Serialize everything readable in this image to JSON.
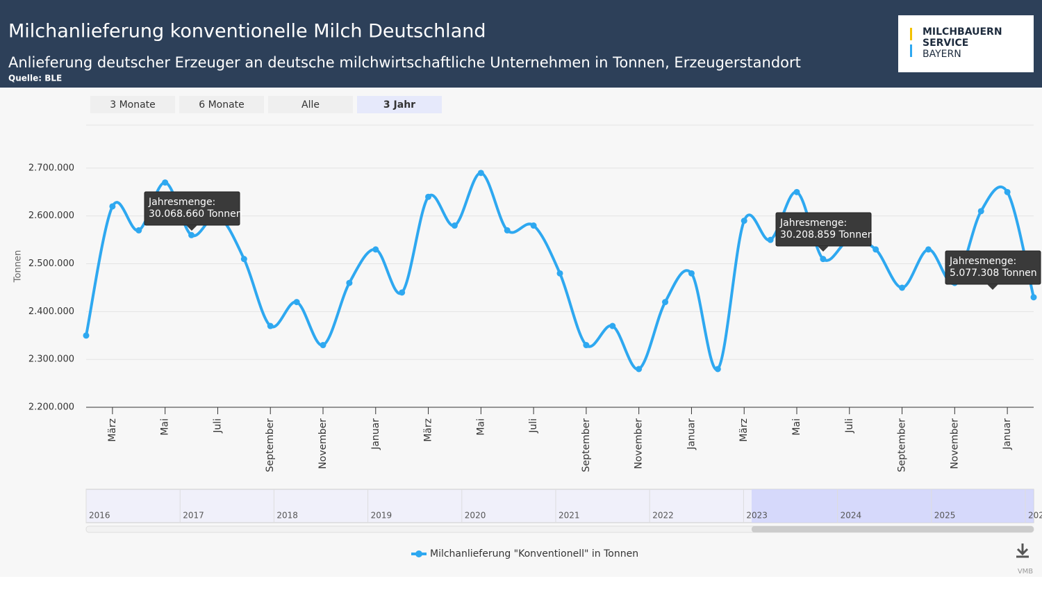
{
  "header": {
    "title": "Milchanlieferung konventionelle Milch Deutschland",
    "subtitle": "Anlieferung deutscher Erzeuger an deutsche milchwirtschaftliche Unternehmen in Tonnen, Erzeugerstandort",
    "source": "Quelle: BLE",
    "logo": [
      "MILCHBAUERN",
      "SERVICE",
      "BAYERN"
    ]
  },
  "buttons": [
    "3 Monate",
    "6 Monate",
    "Alle",
    "3 Jahr"
  ],
  "chart_data": {
    "type": "line",
    "y_label": "Tonnen",
    "categories": [
      null,
      "März",
      null,
      "Mai",
      null,
      "Juli",
      null,
      "September",
      null,
      "November",
      null,
      "Januar",
      null,
      "März",
      null,
      "Mai",
      null,
      "Juli",
      null,
      "September",
      null,
      "November",
      null,
      "Januar",
      null,
      "März",
      null,
      "Mai",
      null,
      "Juli",
      null,
      "September",
      null,
      "November",
      null,
      "Januar",
      null
    ],
    "series": [
      {
        "name": "Milchanlieferung \"Konventionell\" in Tonnen",
        "color": "#2ea8f0",
        "values": [
          2350000,
          2620000,
          2570000,
          2670000,
          2560000,
          2600000,
          2510000,
          2370000,
          2420000,
          2330000,
          2460000,
          2530000,
          2440000,
          2640000,
          2580000,
          2690000,
          2570000,
          2580000,
          2480000,
          2330000,
          2370000,
          2280000,
          2420000,
          2480000,
          2280000,
          2590000,
          2550000,
          2650000,
          2510000,
          2550000,
          2530000,
          2450000,
          2530000,
          2460000,
          2610000,
          2650000,
          2430000
        ]
      }
    ],
    "ylim": [
      2200000,
      2790000
    ],
    "yticks": [
      {
        "value": 2200000,
        "label": "2.200.000"
      },
      {
        "value": 2300000,
        "label": "2.300.000"
      },
      {
        "value": 2400000,
        "label": "2.400.000"
      },
      {
        "value": 2500000,
        "label": "2.500.000"
      },
      {
        "value": 2600000,
        "label": "2.600.000"
      },
      {
        "value": 2700000,
        "label": "2.700.000"
      }
    ],
    "grid": true,
    "annotations": [
      [
        "Jahresmenge:",
        "30.068.660 Tonnen"
      ],
      [
        "Jahresmenge:",
        "30.208.859 Tonnen"
      ],
      [
        "Jahresmenge:",
        "5.077.308 Tonnen"
      ]
    ],
    "navigator_labels": [
      "2016",
      "2017",
      "2018",
      "2019",
      "2020",
      "2021",
      "2022",
      "2023",
      "2024",
      "2025",
      "202"
    ],
    "credit": "VMB"
  }
}
